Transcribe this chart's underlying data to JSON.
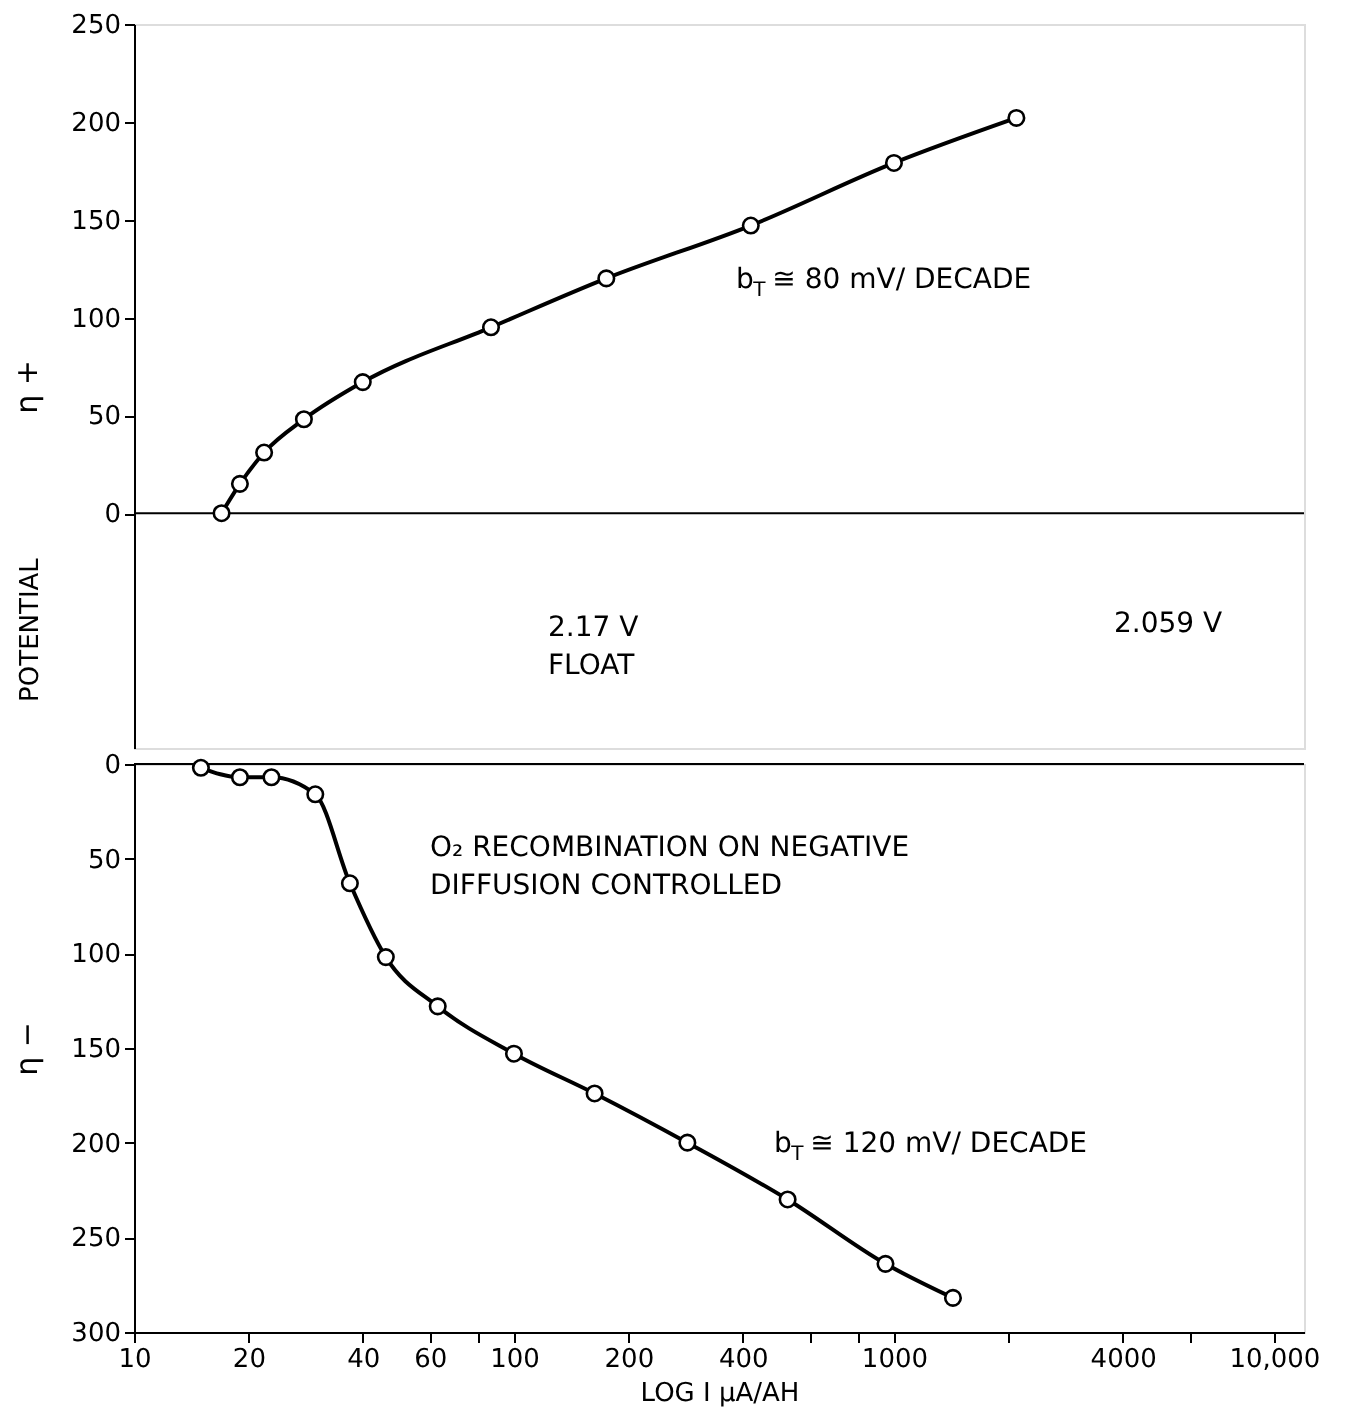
{
  "chart_data": [
    {
      "type": "line",
      "ylabel": "η +",
      "xlim": [
        10,
        12000
      ],
      "ylim": [
        -120,
        250
      ],
      "yticks": [
        0,
        50,
        100,
        150,
        200,
        250
      ],
      "log": "x",
      "tick_labels": "y",
      "marker": "circle",
      "line_style": "solid",
      "series": [
        {
          "color": "#000000",
          "x": [
            17,
            19,
            22,
            28,
            40,
            87,
            175,
            420,
            1000,
            2100
          ],
          "values": [
            0,
            15,
            31,
            48,
            67,
            95,
            120,
            147,
            179,
            202
          ]
        }
      ],
      "ref_lines": [
        {
          "axis": "y",
          "value": 0,
          "color": "#000000"
        }
      ],
      "annotations": [
        "POTENTIAL",
        "b$_{T}$ ≅ 80 mV/ DECADE",
        "2.17 V\nFLOAT",
        "2.059 V"
      ]
    },
    {
      "type": "line",
      "ylabel": "η −",
      "xlabel": "LOG I μA/AH",
      "xlim": [
        10,
        12000
      ],
      "ylim": [
        300,
        0
      ],
      "yticks": [
        0,
        50,
        100,
        150,
        200,
        250,
        300
      ],
      "log": "x",
      "marker": "circle",
      "line_style": "solid",
      "xticks": [
        10,
        20,
        40,
        60,
        {
          "value": 80,
          "label": null
        },
        100,
        200,
        400,
        {
          "value": 600,
          "label": null
        },
        {
          "value": 800,
          "label": null
        },
        1000,
        {
          "value": 2000,
          "label": null
        },
        4000,
        {
          "value": 6000,
          "label": null
        },
        {
          "value": 10000,
          "label": "10,000"
        }
      ],
      "series": [
        {
          "color": "#000000",
          "x": [
            15,
            19,
            23,
            30,
            37,
            46,
            63,
            100,
            163,
            286,
            525,
            950,
            1430
          ],
          "values": [
            2,
            7,
            7,
            16,
            63,
            102,
            128,
            153,
            174,
            200,
            230,
            264,
            282
          ]
        }
      ],
      "ref_lines": [
        {
          "axis": "y",
          "value": 0,
          "color": "#000000"
        }
      ],
      "annotations": [
        "b$_{T}$ ≅ 120 mV/ DECADE",
        "O₂ RECOMBINATION ON NEGATIVE\nDIFFUSION CONTROLLED"
      ]
    }
  ]
}
